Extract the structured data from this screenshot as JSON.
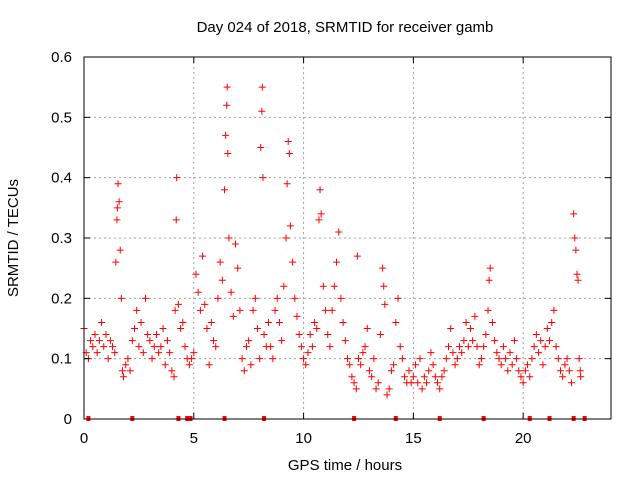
{
  "chart_data": {
    "type": "scatter",
    "title": "Day 024 of 2018, SRMTID for receiver gamb",
    "xlabel": "GPS time / hours",
    "ylabel": "SRMTID / TECUs",
    "xlim": [
      0,
      24
    ],
    "ylim": [
      0,
      0.6
    ],
    "xticks": [
      0,
      5,
      10,
      15,
      20
    ],
    "yticks": [
      0,
      0.1,
      0.2,
      0.3,
      0.4,
      0.5,
      0.6
    ],
    "xtick_labels": [
      "0",
      "5",
      "10",
      "15",
      "20"
    ],
    "ytick_labels": [
      "0",
      "0.1",
      "0.2",
      "0.3",
      "0.4",
      "0.5",
      "0.6"
    ],
    "grid": true,
    "color": "#ff0000",
    "marker": "plus",
    "series": [
      {
        "name": "SRMTID",
        "points": [
          [
            0.0,
            0.15
          ],
          [
            0.1,
            0.11
          ],
          [
            0.2,
            0.1
          ],
          [
            0.3,
            0.13
          ],
          [
            0.4,
            0.12
          ],
          [
            0.5,
            0.14
          ],
          [
            0.6,
            0.11
          ],
          [
            0.7,
            0.13
          ],
          [
            0.8,
            0.16
          ],
          [
            0.9,
            0.12
          ],
          [
            1.0,
            0.14
          ],
          [
            1.1,
            0.1
          ],
          [
            1.2,
            0.13
          ],
          [
            1.3,
            0.12
          ],
          [
            1.4,
            0.11
          ],
          [
            1.45,
            0.26
          ],
          [
            1.5,
            0.33
          ],
          [
            1.52,
            0.35
          ],
          [
            1.55,
            0.39
          ],
          [
            1.6,
            0.36
          ],
          [
            1.65,
            0.28
          ],
          [
            1.7,
            0.2
          ],
          [
            1.75,
            0.08
          ],
          [
            1.8,
            0.07
          ],
          [
            1.9,
            0.09
          ],
          [
            2.0,
            0.1
          ],
          [
            2.1,
            0.08
          ],
          [
            2.2,
            0.13
          ],
          [
            2.3,
            0.15
          ],
          [
            2.4,
            0.18
          ],
          [
            2.5,
            0.12
          ],
          [
            2.6,
            0.16
          ],
          [
            2.7,
            0.11
          ],
          [
            2.8,
            0.2
          ],
          [
            2.9,
            0.14
          ],
          [
            3.0,
            0.13
          ],
          [
            3.1,
            0.1
          ],
          [
            3.2,
            0.12
          ],
          [
            3.3,
            0.14
          ],
          [
            3.4,
            0.11
          ],
          [
            3.5,
            0.12
          ],
          [
            3.6,
            0.15
          ],
          [
            3.7,
            0.09
          ],
          [
            3.8,
            0.13
          ],
          [
            3.9,
            0.11
          ],
          [
            4.0,
            0.08
          ],
          [
            4.1,
            0.07
          ],
          [
            4.15,
            0.18
          ],
          [
            4.2,
            0.33
          ],
          [
            4.22,
            0.4
          ],
          [
            4.3,
            0.19
          ],
          [
            4.4,
            0.15
          ],
          [
            4.5,
            0.16
          ],
          [
            4.6,
            0.12
          ],
          [
            4.7,
            0.1
          ],
          [
            4.8,
            0.09
          ],
          [
            4.9,
            0.1
          ],
          [
            5.0,
            0.11
          ],
          [
            5.1,
            0.24
          ],
          [
            5.2,
            0.21
          ],
          [
            5.3,
            0.18
          ],
          [
            5.4,
            0.27
          ],
          [
            5.5,
            0.19
          ],
          [
            5.6,
            0.15
          ],
          [
            5.7,
            0.09
          ],
          [
            5.8,
            0.16
          ],
          [
            5.9,
            0.13
          ],
          [
            6.0,
            0.12
          ],
          [
            6.1,
            0.2
          ],
          [
            6.2,
            0.26
          ],
          [
            6.3,
            0.23
          ],
          [
            6.4,
            0.38
          ],
          [
            6.45,
            0.47
          ],
          [
            6.5,
            0.52
          ],
          [
            6.52,
            0.55
          ],
          [
            6.55,
            0.44
          ],
          [
            6.6,
            0.3
          ],
          [
            6.7,
            0.21
          ],
          [
            6.8,
            0.17
          ],
          [
            6.9,
            0.29
          ],
          [
            7.0,
            0.25
          ],
          [
            7.1,
            0.18
          ],
          [
            7.2,
            0.1
          ],
          [
            7.3,
            0.08
          ],
          [
            7.4,
            0.12
          ],
          [
            7.5,
            0.13
          ],
          [
            7.6,
            0.09
          ],
          [
            7.7,
            0.18
          ],
          [
            7.8,
            0.2
          ],
          [
            7.9,
            0.15
          ],
          [
            8.0,
            0.1
          ],
          [
            8.05,
            0.45
          ],
          [
            8.1,
            0.51
          ],
          [
            8.12,
            0.55
          ],
          [
            8.15,
            0.4
          ],
          [
            8.2,
            0.14
          ],
          [
            8.3,
            0.12
          ],
          [
            8.4,
            0.16
          ],
          [
            8.5,
            0.12
          ],
          [
            8.6,
            0.1
          ],
          [
            8.7,
            0.18
          ],
          [
            8.8,
            0.2
          ],
          [
            8.9,
            0.16
          ],
          [
            9.0,
            0.13
          ],
          [
            9.1,
            0.22
          ],
          [
            9.2,
            0.3
          ],
          [
            9.25,
            0.39
          ],
          [
            9.3,
            0.46
          ],
          [
            9.35,
            0.44
          ],
          [
            9.4,
            0.32
          ],
          [
            9.5,
            0.26
          ],
          [
            9.6,
            0.2
          ],
          [
            9.7,
            0.17
          ],
          [
            9.8,
            0.14
          ],
          [
            9.9,
            0.12
          ],
          [
            10.0,
            0.1
          ],
          [
            10.1,
            0.09
          ],
          [
            10.2,
            0.11
          ],
          [
            10.3,
            0.14
          ],
          [
            10.4,
            0.12
          ],
          [
            10.5,
            0.16
          ],
          [
            10.6,
            0.15
          ],
          [
            10.7,
            0.33
          ],
          [
            10.75,
            0.38
          ],
          [
            10.8,
            0.34
          ],
          [
            10.9,
            0.22
          ],
          [
            11.0,
            0.18
          ],
          [
            11.1,
            0.14
          ],
          [
            11.2,
            0.12
          ],
          [
            11.3,
            0.18
          ],
          [
            11.4,
            0.22
          ],
          [
            11.5,
            0.26
          ],
          [
            11.6,
            0.31
          ],
          [
            11.7,
            0.2
          ],
          [
            11.8,
            0.16
          ],
          [
            11.9,
            0.13
          ],
          [
            12.0,
            0.1
          ],
          [
            12.1,
            0.09
          ],
          [
            12.2,
            0.07
          ],
          [
            12.3,
            0.06
          ],
          [
            12.4,
            0.05
          ],
          [
            12.45,
            0.27
          ],
          [
            12.5,
            0.1
          ],
          [
            12.6,
            0.09
          ],
          [
            12.7,
            0.11
          ],
          [
            12.8,
            0.12
          ],
          [
            12.9,
            0.15
          ],
          [
            13.0,
            0.08
          ],
          [
            13.1,
            0.07
          ],
          [
            13.2,
            0.1
          ],
          [
            13.3,
            0.05
          ],
          [
            13.4,
            0.06
          ],
          [
            13.5,
            0.14
          ],
          [
            13.6,
            0.25
          ],
          [
            13.65,
            0.22
          ],
          [
            13.7,
            0.19
          ],
          [
            13.8,
            0.04
          ],
          [
            13.9,
            0.05
          ],
          [
            14.0,
            0.08
          ],
          [
            14.1,
            0.09
          ],
          [
            14.2,
            0.16
          ],
          [
            14.3,
            0.2
          ],
          [
            14.4,
            0.12
          ],
          [
            14.5,
            0.1
          ],
          [
            14.6,
            0.07
          ],
          [
            14.7,
            0.06
          ],
          [
            14.8,
            0.08
          ],
          [
            14.9,
            0.06
          ],
          [
            15.0,
            0.07
          ],
          [
            15.1,
            0.09
          ],
          [
            15.2,
            0.06
          ],
          [
            15.3,
            0.1
          ],
          [
            15.4,
            0.05
          ],
          [
            15.5,
            0.07
          ],
          [
            15.6,
            0.06
          ],
          [
            15.7,
            0.08
          ],
          [
            15.8,
            0.11
          ],
          [
            15.9,
            0.09
          ],
          [
            16.0,
            0.07
          ],
          [
            16.1,
            0.06
          ],
          [
            16.2,
            0.05
          ],
          [
            16.3,
            0.07
          ],
          [
            16.4,
            0.08
          ],
          [
            16.5,
            0.1
          ],
          [
            16.6,
            0.12
          ],
          [
            16.7,
            0.15
          ],
          [
            16.8,
            0.11
          ],
          [
            16.9,
            0.09
          ],
          [
            17.0,
            0.1
          ],
          [
            17.1,
            0.12
          ],
          [
            17.2,
            0.11
          ],
          [
            17.3,
            0.13
          ],
          [
            17.4,
            0.16
          ],
          [
            17.5,
            0.12
          ],
          [
            17.6,
            0.15
          ],
          [
            17.7,
            0.13
          ],
          [
            17.8,
            0.17
          ],
          [
            17.9,
            0.12
          ],
          [
            18.0,
            0.09
          ],
          [
            18.1,
            0.1
          ],
          [
            18.2,
            0.12
          ],
          [
            18.3,
            0.14
          ],
          [
            18.4,
            0.18
          ],
          [
            18.45,
            0.23
          ],
          [
            18.5,
            0.25
          ],
          [
            18.6,
            0.16
          ],
          [
            18.7,
            0.13
          ],
          [
            18.8,
            0.11
          ],
          [
            18.9,
            0.1
          ],
          [
            19.0,
            0.09
          ],
          [
            19.1,
            0.12
          ],
          [
            19.2,
            0.1
          ],
          [
            19.3,
            0.08
          ],
          [
            19.4,
            0.11
          ],
          [
            19.5,
            0.09
          ],
          [
            19.6,
            0.13
          ],
          [
            19.7,
            0.1
          ],
          [
            19.8,
            0.08
          ],
          [
            19.9,
            0.07
          ],
          [
            20.0,
            0.06
          ],
          [
            20.1,
            0.08
          ],
          [
            20.2,
            0.09
          ],
          [
            20.3,
            0.07
          ],
          [
            20.4,
            0.1
          ],
          [
            20.5,
            0.12
          ],
          [
            20.6,
            0.14
          ],
          [
            20.7,
            0.11
          ],
          [
            20.8,
            0.13
          ],
          [
            20.9,
            0.09
          ],
          [
            21.0,
            0.12
          ],
          [
            21.1,
            0.15
          ],
          [
            21.2,
            0.13
          ],
          [
            21.3,
            0.16
          ],
          [
            21.4,
            0.18
          ],
          [
            21.5,
            0.12
          ],
          [
            21.6,
            0.1
          ],
          [
            21.7,
            0.08
          ],
          [
            21.8,
            0.07
          ],
          [
            21.9,
            0.09
          ],
          [
            22.0,
            0.1
          ],
          [
            22.1,
            0.08
          ],
          [
            22.2,
            0.06
          ],
          [
            22.3,
            0.34
          ],
          [
            22.35,
            0.3
          ],
          [
            22.4,
            0.28
          ],
          [
            22.45,
            0.24
          ],
          [
            22.5,
            0.23
          ],
          [
            22.55,
            0.1
          ],
          [
            22.6,
            0.08
          ],
          [
            22.62,
            0.07
          ]
        ]
      }
    ],
    "gap_markers_x": [
      0.2,
      2.2,
      4.3,
      4.7,
      4.85,
      6.4,
      8.2,
      12.3,
      14.2,
      16.2,
      18.2,
      20.3,
      21.2,
      22.3,
      22.8
    ]
  }
}
